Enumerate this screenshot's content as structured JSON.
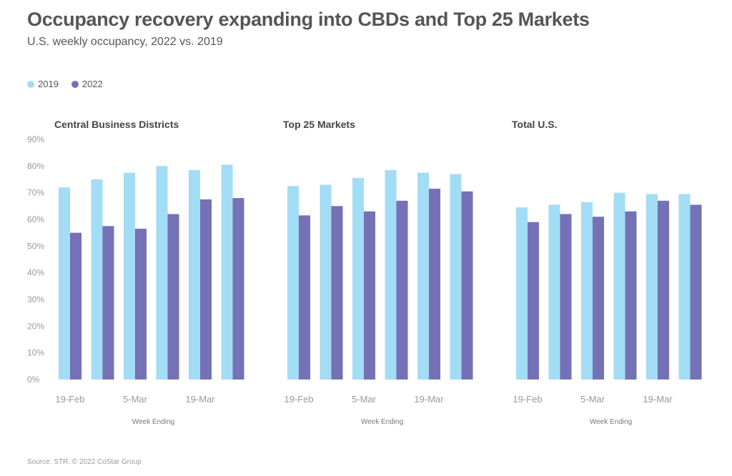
{
  "header": {
    "title": "Occupancy recovery expanding into CBDs and Top 25 Markets",
    "subtitle": "U.S. weekly occupancy, 2022 vs. 2019"
  },
  "legend": {
    "items": [
      {
        "label": "2019",
        "color": "#a3dcf5"
      },
      {
        "label": "2022",
        "color": "#7471b6"
      }
    ]
  },
  "source": "Source: STR. © 2022 CoStar Group",
  "chart_data": [
    {
      "type": "bar",
      "title": "Central Business Districts",
      "xlabel": "Week Ending",
      "ylabel": "",
      "ylim": [
        0,
        90
      ],
      "yticks": [
        "0%",
        "10%",
        "20%",
        "30%",
        "40%",
        "50%",
        "60%",
        "70%",
        "80%",
        "90%"
      ],
      "xtick_labels": [
        "19-Feb",
        "5-Mar",
        "19-Mar"
      ],
      "series": [
        {
          "name": "2019",
          "values": [
            72,
            75,
            77.5,
            80,
            78.5,
            80.5
          ]
        },
        {
          "name": "2022",
          "values": [
            55,
            57.5,
            56.5,
            62,
            67.5,
            68
          ]
        }
      ]
    },
    {
      "type": "bar",
      "title": "Top 25 Markets",
      "xlabel": "Week Ending",
      "ylabel": "",
      "ylim": [
        0,
        90
      ],
      "xtick_labels": [
        "19-Feb",
        "5-Mar",
        "19-Mar"
      ],
      "series": [
        {
          "name": "2019",
          "values": [
            72.5,
            73,
            75.5,
            78.5,
            77.5,
            77
          ]
        },
        {
          "name": "2022",
          "values": [
            61.5,
            65,
            63,
            67,
            71.5,
            70.5
          ]
        }
      ]
    },
    {
      "type": "bar",
      "title": "Total U.S.",
      "xlabel": "Week Ending",
      "ylabel": "",
      "ylim": [
        0,
        90
      ],
      "xtick_labels": [
        "19-Feb",
        "5-Mar",
        "19-Mar"
      ],
      "series": [
        {
          "name": "2019",
          "values": [
            64.5,
            65.5,
            66.5,
            70,
            69.5,
            69.5
          ]
        },
        {
          "name": "2022",
          "values": [
            59,
            62,
            61,
            63,
            67,
            65.5
          ]
        }
      ]
    }
  ]
}
